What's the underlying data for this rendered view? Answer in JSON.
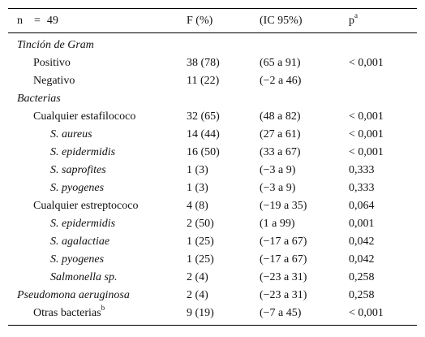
{
  "header": {
    "n_label": "n",
    "n_eq": "=",
    "n_value": "49",
    "col_f": "F (%)",
    "col_ic": "(IC 95%)",
    "col_p": "p",
    "col_p_sup": "a"
  },
  "rows": [
    {
      "label": "Tinción de Gram",
      "f": "",
      "ic": "",
      "p": "",
      "sup": ""
    },
    {
      "label": "Positivo",
      "f": "38 (78)",
      "ic": "(65 a 91)",
      "p": "< 0,001",
      "sup": ""
    },
    {
      "label": "Negativo",
      "f": "11 (22)",
      "ic": "(−2 a 46)",
      "p": "",
      "sup": ""
    },
    {
      "label": "Bacterias",
      "f": "",
      "ic": "",
      "p": "",
      "sup": ""
    },
    {
      "label": "Cualquier estafilococo",
      "f": "32 (65)",
      "ic": "(48 a 82)",
      "p": "< 0,001",
      "sup": ""
    },
    {
      "label": "S. aureus",
      "f": "14 (44)",
      "ic": "(27 a 61)",
      "p": "< 0,001",
      "sup": ""
    },
    {
      "label": "S. epidermidis",
      "f": "16 (50)",
      "ic": "(33 a 67)",
      "p": "< 0,001",
      "sup": ""
    },
    {
      "label": "S. saprofites",
      "f": "1 (3)",
      "ic": "(−3 a 9)",
      "p": "0,333",
      "sup": ""
    },
    {
      "label": "S. pyogenes",
      "f": "1 (3)",
      "ic": "(−3 a 9)",
      "p": "0,333",
      "sup": ""
    },
    {
      "label": "Cualquier estreptococo",
      "f": "4 (8)",
      "ic": "(−19 a 35)",
      "p": "0,064",
      "sup": ""
    },
    {
      "label": "S. epidermidis",
      "f": "2 (50)",
      "ic": "(1 a 99)",
      "p": "0,001",
      "sup": ""
    },
    {
      "label": "S. agalactiae",
      "f": "1 (25)",
      "ic": "(−17 a 67)",
      "p": "0,042",
      "sup": ""
    },
    {
      "label": "S. pyogenes",
      "f": "1 (25)",
      "ic": "(−17 a 67)",
      "p": "0,042",
      "sup": ""
    },
    {
      "label": "Salmonella sp.",
      "f": "2 (4)",
      "ic": "(−23 a 31)",
      "p": "0,258",
      "sup": ""
    },
    {
      "label": "Pseudomona aeruginosa",
      "f": "2 (4)",
      "ic": "(−23 a 31)",
      "p": "0,258",
      "sup": ""
    },
    {
      "label": "Otras bacterias",
      "f": "9 (19)",
      "ic": "(−7 a 45)",
      "p": "< 0,001",
      "sup": "b"
    }
  ]
}
